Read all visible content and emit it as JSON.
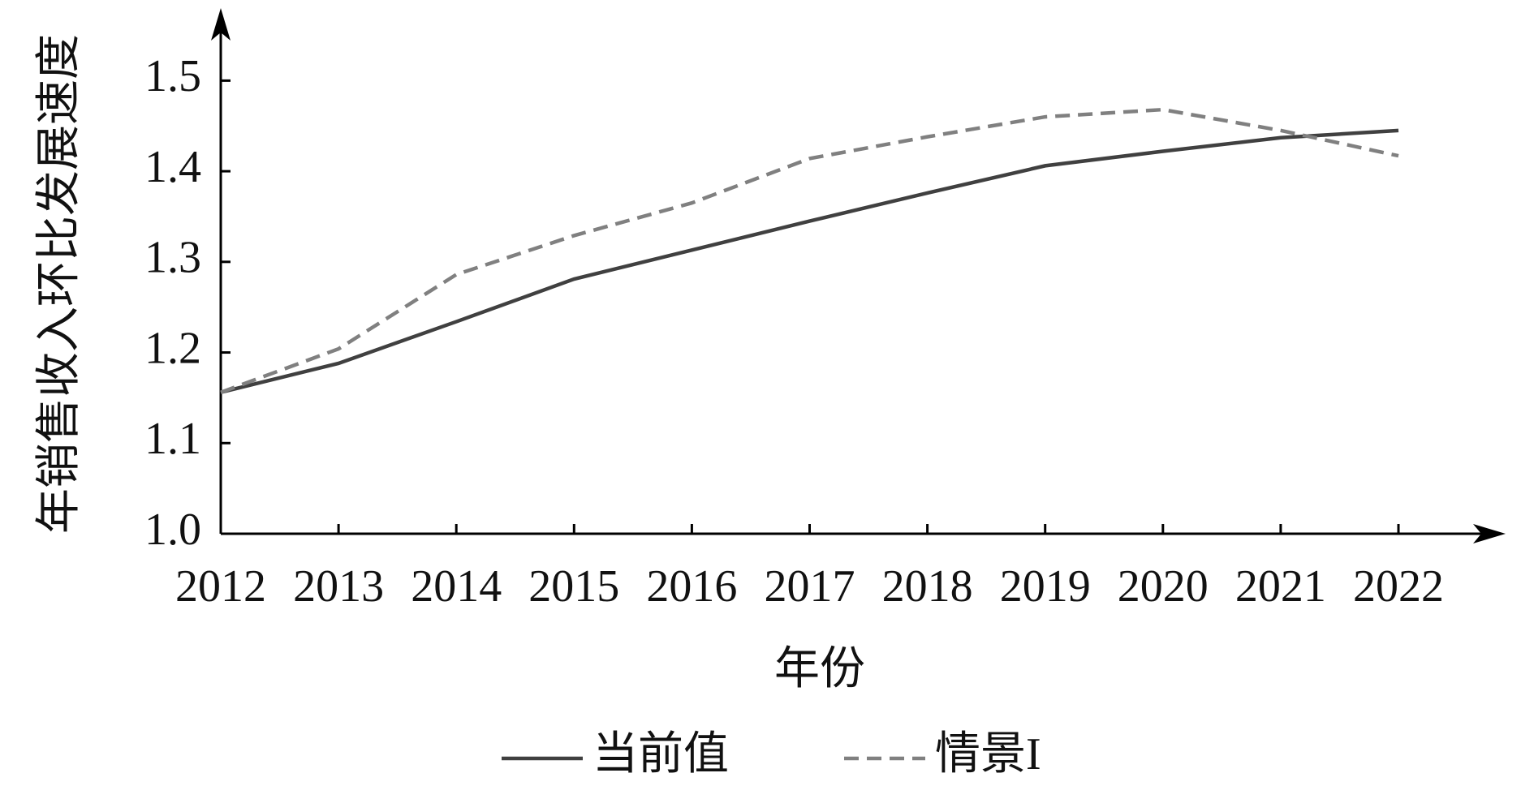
{
  "chart_data": {
    "type": "line",
    "x_label": "年份",
    "y_label": "年销售收入环比发展速度",
    "categories": [
      "2012",
      "2013",
      "2014",
      "2015",
      "2016",
      "2017",
      "2018",
      "2019",
      "2020",
      "2021",
      "2022"
    ],
    "series": [
      {
        "name": "当前值",
        "color": "#404040",
        "dash": false,
        "values": [
          1.156,
          1.188,
          1.234,
          1.281,
          1.313,
          1.345,
          1.376,
          1.406,
          1.422,
          1.437,
          1.445
        ]
      },
      {
        "name": "情景I",
        "color": "#808080",
        "dash": true,
        "values": [
          1.156,
          1.204,
          1.286,
          1.329,
          1.365,
          1.414,
          1.438,
          1.46,
          1.468,
          1.445,
          1.417
        ]
      }
    ],
    "ylim": [
      1.0,
      1.58
    ],
    "yticks": [
      {
        "value": 1.0,
        "label": "1.0"
      },
      1.1,
      1.2,
      1.3,
      1.4,
      1.5
    ],
    "legend": "bottom"
  }
}
